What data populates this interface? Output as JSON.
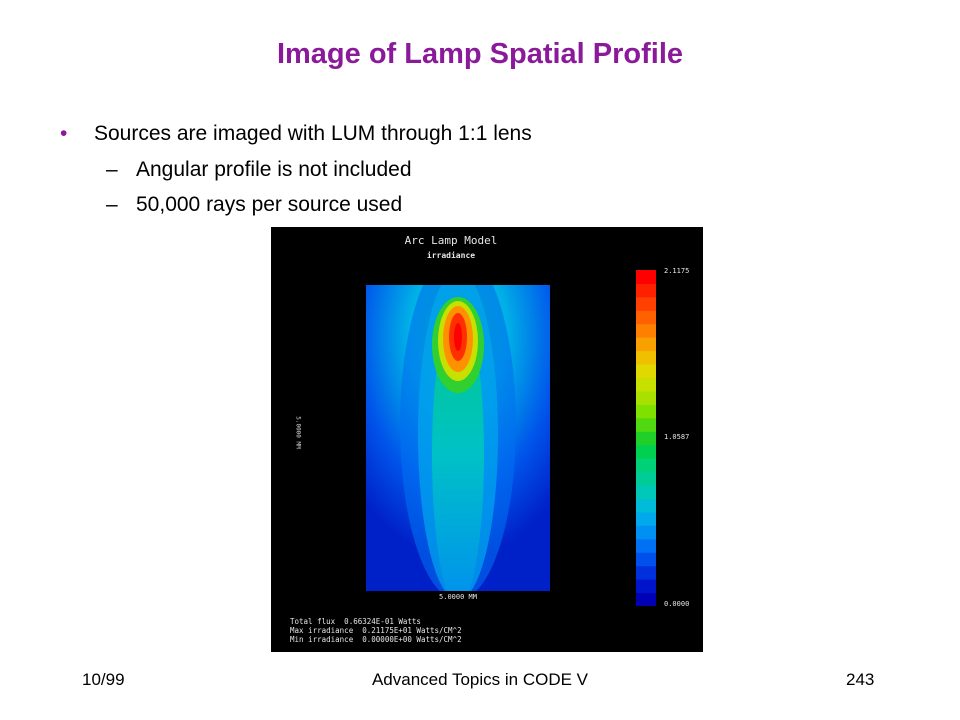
{
  "slide": {
    "title": "Image of Lamp Spatial Profile",
    "bullet": "Sources are imaged with LUM through 1:1 lens",
    "sub_bullets": [
      "Angular profile is not included",
      "50,000 rays per source used"
    ],
    "bullet_symbol": "•",
    "dash_symbol": "–"
  },
  "figure": {
    "title": "Arc Lamp Model",
    "subtitle": "irradiance",
    "x_axis_label": "5.0000 MM",
    "y_axis_label": "5.0000 MM",
    "colorbar": {
      "max_label": "2.1175",
      "mid_label": "1.0587",
      "min_label": "0.0000",
      "colors": [
        "#0000b4",
        "#0014cc",
        "#0030dc",
        "#0050ec",
        "#0070f4",
        "#0090f4",
        "#00a8ec",
        "#00bcd8",
        "#00c8b8",
        "#00cc98",
        "#00d078",
        "#00d050",
        "#20d028",
        "#50d810",
        "#80e000",
        "#a8e000",
        "#c8e000",
        "#e0d800",
        "#f0c000",
        "#f8a000",
        "#ff8000",
        "#ff6000",
        "#ff4000",
        "#ff2000",
        "#ff0000"
      ]
    },
    "stats": [
      "Total flux  0.66324E-01 Watts",
      "Max irradiance  0.21175E+01 Watts/CM^2",
      "Min irradiance  0.00000E+00 Watts/CM^2"
    ]
  },
  "footer": {
    "left": "10/99",
    "center": "Advanced Topics in CODE V",
    "right": "243"
  }
}
